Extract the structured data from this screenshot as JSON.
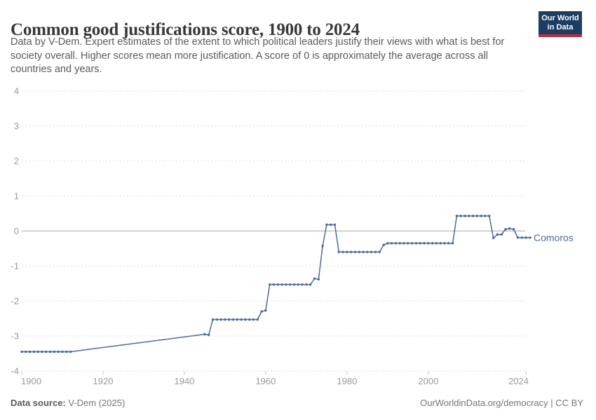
{
  "header": {
    "title": "Common good justifications score, 1900 to 2024",
    "subtitle_lines": [
      "Data by V-Dem. Expert estimates of the extent to which political leaders justify their views with what is best for",
      "society overall. Higher scores mean more justification. A score of 0 is approximately the average across all",
      "countries and years."
    ],
    "logo_line1": "Our World",
    "logo_line2": "in Data"
  },
  "footer": {
    "source_label": "Data source:",
    "source_value": " V-Dem (2025)",
    "credit": "OurWorldinData.org/democracy | CC BY"
  },
  "chart_data": {
    "type": "line",
    "title": "Common good justifications score, 1900 to 2024",
    "xlabel": "",
    "ylabel": "",
    "xlim": [
      1900,
      2024
    ],
    "ylim": [
      -4,
      4
    ],
    "x_ticks": [
      1900,
      1920,
      1940,
      1960,
      1980,
      2000,
      2024
    ],
    "y_ticks": [
      4,
      3,
      2,
      1,
      0,
      -1,
      -2,
      -3,
      -4
    ],
    "grid": "dashed-horizontal",
    "legend_position": "end-of-line-label",
    "colors": {
      "line": "#4c6a9c",
      "grid": "#dcdcdc",
      "zero_line": "#a5a5a5",
      "tick_mark": "#c8c8c8"
    },
    "series": [
      {
        "name": "Comoros",
        "points": [
          [
            1900,
            -3.45
          ],
          [
            1901,
            -3.45
          ],
          [
            1902,
            -3.45
          ],
          [
            1903,
            -3.45
          ],
          [
            1904,
            -3.45
          ],
          [
            1905,
            -3.45
          ],
          [
            1906,
            -3.45
          ],
          [
            1907,
            -3.45
          ],
          [
            1908,
            -3.45
          ],
          [
            1909,
            -3.45
          ],
          [
            1910,
            -3.45
          ],
          [
            1911,
            -3.45
          ],
          [
            1912,
            -3.45
          ],
          [
            1945,
            -2.95
          ],
          [
            1946,
            -2.97
          ],
          [
            1947,
            -2.53
          ],
          [
            1948,
            -2.53
          ],
          [
            1949,
            -2.53
          ],
          [
            1950,
            -2.53
          ],
          [
            1951,
            -2.53
          ],
          [
            1952,
            -2.53
          ],
          [
            1953,
            -2.53
          ],
          [
            1954,
            -2.53
          ],
          [
            1955,
            -2.53
          ],
          [
            1956,
            -2.53
          ],
          [
            1957,
            -2.53
          ],
          [
            1958,
            -2.53
          ],
          [
            1959,
            -2.3
          ],
          [
            1960,
            -2.27
          ],
          [
            1961,
            -1.53
          ],
          [
            1962,
            -1.53
          ],
          [
            1963,
            -1.53
          ],
          [
            1964,
            -1.53
          ],
          [
            1965,
            -1.53
          ],
          [
            1966,
            -1.53
          ],
          [
            1967,
            -1.53
          ],
          [
            1968,
            -1.53
          ],
          [
            1969,
            -1.53
          ],
          [
            1970,
            -1.53
          ],
          [
            1971,
            -1.53
          ],
          [
            1972,
            -1.36
          ],
          [
            1973,
            -1.38
          ],
          [
            1974,
            -0.43
          ],
          [
            1975,
            0.18
          ],
          [
            1976,
            0.18
          ],
          [
            1977,
            0.18
          ],
          [
            1978,
            -0.6
          ],
          [
            1979,
            -0.6
          ],
          [
            1980,
            -0.6
          ],
          [
            1981,
            -0.6
          ],
          [
            1982,
            -0.6
          ],
          [
            1983,
            -0.6
          ],
          [
            1984,
            -0.6
          ],
          [
            1985,
            -0.6
          ],
          [
            1986,
            -0.6
          ],
          [
            1987,
            -0.6
          ],
          [
            1988,
            -0.6
          ],
          [
            1989,
            -0.4
          ],
          [
            1990,
            -0.35
          ],
          [
            1991,
            -0.35
          ],
          [
            1992,
            -0.35
          ],
          [
            1993,
            -0.35
          ],
          [
            1994,
            -0.35
          ],
          [
            1995,
            -0.35
          ],
          [
            1996,
            -0.35
          ],
          [
            1997,
            -0.35
          ],
          [
            1998,
            -0.35
          ],
          [
            1999,
            -0.35
          ],
          [
            2000,
            -0.35
          ],
          [
            2001,
            -0.35
          ],
          [
            2002,
            -0.35
          ],
          [
            2003,
            -0.35
          ],
          [
            2004,
            -0.35
          ],
          [
            2005,
            -0.35
          ],
          [
            2006,
            -0.35
          ],
          [
            2007,
            0.43
          ],
          [
            2008,
            0.43
          ],
          [
            2009,
            0.43
          ],
          [
            2010,
            0.43
          ],
          [
            2011,
            0.43
          ],
          [
            2012,
            0.43
          ],
          [
            2013,
            0.43
          ],
          [
            2014,
            0.43
          ],
          [
            2015,
            0.43
          ],
          [
            2016,
            -0.2
          ],
          [
            2017,
            -0.1
          ],
          [
            2018,
            -0.1
          ],
          [
            2019,
            0.05
          ],
          [
            2020,
            0.07
          ],
          [
            2021,
            0.05
          ],
          [
            2022,
            -0.19
          ],
          [
            2023,
            -0.19
          ],
          [
            2024,
            -0.19
          ]
        ]
      }
    ]
  }
}
